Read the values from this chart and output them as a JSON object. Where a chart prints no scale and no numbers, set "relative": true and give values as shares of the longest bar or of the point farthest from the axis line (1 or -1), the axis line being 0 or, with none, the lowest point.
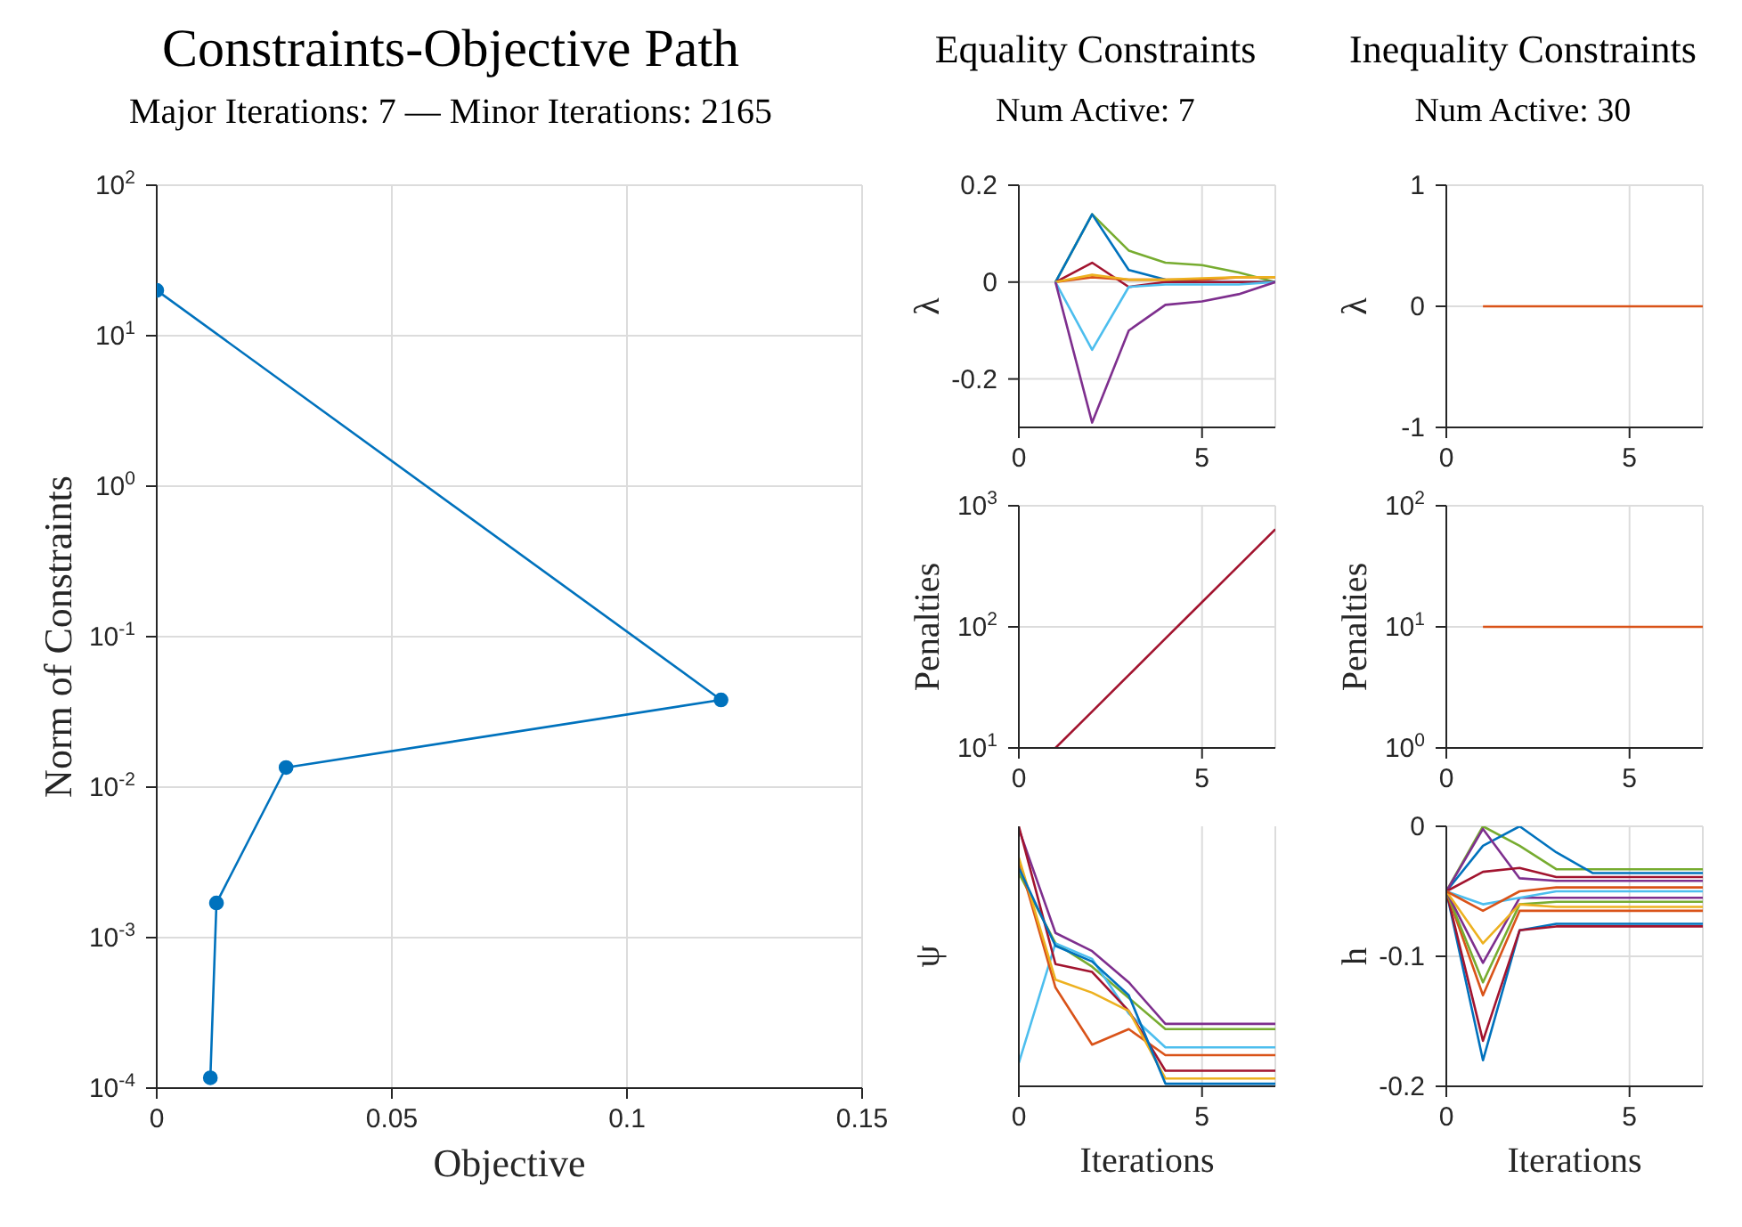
{
  "chart_data": [
    {
      "type": "line",
      "title": "Constraints-Objective Path",
      "subtitle": "Major Iterations: 7 — Minor Iterations: 2165",
      "xlabel": "Objective",
      "ylabel": "Norm of Constraints",
      "log": "y",
      "grid": true,
      "marker": "circle",
      "x": [
        0,
        0.12,
        0.0275,
        0.0127,
        0.0114
      ],
      "series": [
        {
          "color": "#0072bd",
          "values": [
            20,
            0.038,
            0.0135,
            0.0017,
            0.000117
          ]
        }
      ],
      "xlim": [
        0,
        0.15
      ],
      "xticks": [
        0,
        0.05,
        0.1,
        0.15
      ],
      "ylim": [
        0.0001,
        100
      ],
      "yticks": [
        {
          "value": 0.0001,
          "label": "10$^{-4}$"
        },
        {
          "value": 0.001,
          "label": "10$^{-3}$"
        },
        {
          "value": 0.01,
          "label": "10$^{-2}$"
        },
        {
          "value": 0.1,
          "label": "10$^{-1}$"
        },
        {
          "value": 1,
          "label": "10$^{0}$"
        },
        {
          "value": 10,
          "label": "10$^{1}$"
        },
        {
          "value": 100,
          "label": "10$^{2}$"
        }
      ]
    },
    {
      "type": "line",
      "title": "Equality Constraints",
      "subtitle": "Num Active: 7",
      "ylabel": "λ",
      "grid": true,
      "x": [
        1,
        2,
        3,
        4,
        5,
        6,
        7
      ],
      "series": [
        {
          "color": "#77ac30",
          "values": [
            0,
            0.14,
            0.065,
            0.04,
            0.035,
            0.02,
            0
          ]
        },
        {
          "color": "#0072bd",
          "values": [
            0,
            0.14,
            0.025,
            0.005,
            0,
            0,
            0
          ]
        },
        {
          "color": "#a2142f",
          "values": [
            0,
            0.04,
            -0.01,
            0,
            0,
            0,
            0
          ]
        },
        {
          "color": "#d95319",
          "values": [
            0,
            0.01,
            0.005,
            0.005,
            0.005,
            0.01,
            0.01
          ]
        },
        {
          "color": "#edb120",
          "values": [
            0,
            0.015,
            0.005,
            0.005,
            0.008,
            0.01,
            0.01
          ]
        },
        {
          "color": "#4dbeee",
          "values": [
            0,
            -0.14,
            -0.01,
            -0.005,
            -0.005,
            -0.005,
            0
          ]
        },
        {
          "color": "#7e2f8e",
          "values": [
            0,
            -0.29,
            -0.1,
            -0.047,
            -0.04,
            -0.025,
            0
          ]
        }
      ],
      "xlim": [
        0,
        7
      ],
      "xticks": [
        0,
        5
      ],
      "ylim": [
        -0.3,
        0.2
      ],
      "yticks": [
        -0.2,
        0,
        0.2
      ]
    },
    {
      "type": "line",
      "ylabel": "Penalties",
      "log": "y",
      "grid": true,
      "x": [
        1,
        2,
        3,
        4,
        5,
        6,
        7
      ],
      "series": [
        {
          "color": "#a2142f",
          "values": [
            10,
            20,
            40,
            80,
            160,
            320,
            640
          ]
        }
      ],
      "xlim": [
        0,
        7
      ],
      "xticks": [
        0,
        5
      ],
      "ylim": [
        10,
        1000
      ],
      "yticks": [
        {
          "value": 10,
          "label": "10$^{1}$"
        },
        {
          "value": 100,
          "label": "10$^{2}$"
        },
        {
          "value": 1000,
          "label": "10$^{3}$"
        }
      ]
    },
    {
      "type": "line",
      "xlabel": "Iterations",
      "ylabel": "ψ",
      "relative": true,
      "grid": "x",
      "x": [
        0,
        1,
        2,
        3,
        4,
        5,
        6,
        7
      ],
      "series": [
        {
          "color": "#7e2f8e",
          "values": [
            0.99,
            0.59,
            0.52,
            0.4,
            0.24,
            0.24,
            0.24,
            0.24
          ]
        },
        {
          "color": "#77ac30",
          "values": [
            0.82,
            0.55,
            0.46,
            0.34,
            0.22,
            0.22,
            0.22,
            0.22
          ]
        },
        {
          "color": "#4dbeee",
          "values": [
            0.09,
            0.55,
            0.49,
            0.28,
            0.15,
            0.15,
            0.15,
            0.15
          ]
        },
        {
          "color": "#d95319",
          "values": [
            0.87,
            0.38,
            0.16,
            0.22,
            0.12,
            0.12,
            0.12,
            0.12
          ]
        },
        {
          "color": "#a2142f",
          "values": [
            1,
            0.47,
            0.44,
            0.29,
            0.06,
            0.06,
            0.06,
            0.06
          ]
        },
        {
          "color": "#edb120",
          "values": [
            0.88,
            0.41,
            0.36,
            0.29,
            0.03,
            0.03,
            0.03,
            0.03
          ]
        },
        {
          "color": "#0072bd",
          "values": [
            0.84,
            0.54,
            0.48,
            0.35,
            0.01,
            0.01,
            0.01,
            0.01
          ]
        }
      ],
      "xlim": [
        0,
        7
      ],
      "xticks": [
        0,
        5
      ]
    },
    {
      "type": "line",
      "title": "Inequality Constraints",
      "subtitle": "Num Active: 30",
      "ylabel": "λ",
      "grid": true,
      "x": [
        1,
        2,
        3,
        4,
        5,
        6,
        7
      ],
      "series": [
        {
          "color": "#d95319",
          "values": [
            0,
            0,
            0,
            0,
            0,
            0,
            0
          ]
        }
      ],
      "xlim": [
        0,
        7
      ],
      "xticks": [
        0,
        5
      ],
      "ylim": [
        -1,
        1
      ],
      "yticks": [
        -1,
        0,
        1
      ]
    },
    {
      "type": "line",
      "ylabel": "Penalties",
      "log": "y",
      "grid": true,
      "x": [
        1,
        2,
        3,
        4,
        5,
        6,
        7
      ],
      "series": [
        {
          "color": "#d95319",
          "values": [
            10,
            10,
            10,
            10,
            10,
            10,
            10
          ]
        }
      ],
      "xlim": [
        0,
        7
      ],
      "xticks": [
        0,
        5
      ],
      "ylim": [
        1,
        100
      ],
      "yticks": [
        {
          "value": 1,
          "label": "10$^{0}$"
        },
        {
          "value": 10,
          "label": "10$^{1}$"
        },
        {
          "value": 100,
          "label": "10$^{2}$"
        }
      ]
    },
    {
      "type": "line",
      "xlabel": "Iterations",
      "ylabel": "h",
      "grid": true,
      "x": [
        0,
        1,
        2,
        3,
        4,
        5,
        6,
        7
      ],
      "series": [
        {
          "color": "#0072bd",
          "values": [
            -0.05,
            -0.18,
            -0.08,
            -0.075,
            -0.075,
            -0.075,
            -0.075,
            -0.075
          ]
        },
        {
          "color": "#a2142f",
          "values": [
            -0.05,
            -0.165,
            -0.08,
            -0.077,
            -0.077,
            -0.077,
            -0.077,
            -0.077
          ]
        },
        {
          "color": "#d95319",
          "values": [
            -0.05,
            -0.13,
            -0.065,
            -0.065,
            -0.065,
            -0.065,
            -0.065,
            -0.065
          ]
        },
        {
          "color": "#77ac30",
          "values": [
            -0.05,
            -0.12,
            -0.06,
            -0.058,
            -0.058,
            -0.058,
            -0.058,
            -0.058
          ]
        },
        {
          "color": "#7e2f8e",
          "values": [
            -0.05,
            -0.105,
            -0.055,
            -0.055,
            -0.055,
            -0.055,
            -0.055,
            -0.055
          ]
        },
        {
          "color": "#edb120",
          "values": [
            -0.05,
            -0.09,
            -0.06,
            -0.062,
            -0.062,
            -0.062,
            -0.062,
            -0.062
          ]
        },
        {
          "color": "#77ac30",
          "values": [
            -0.05,
            0,
            -0.015,
            -0.033,
            -0.033,
            -0.033,
            -0.033,
            -0.033
          ]
        },
        {
          "color": "#0072bd",
          "values": [
            -0.05,
            -0.015,
            0,
            -0.02,
            -0.036,
            -0.036,
            -0.036,
            -0.036
          ]
        },
        {
          "color": "#7e2f8e",
          "values": [
            -0.05,
            -0.002,
            -0.04,
            -0.042,
            -0.042,
            -0.042,
            -0.042,
            -0.042
          ]
        },
        {
          "color": "#a2142f",
          "values": [
            -0.05,
            -0.035,
            -0.032,
            -0.039,
            -0.039,
            -0.039,
            -0.039,
            -0.039
          ]
        },
        {
          "color": "#4dbeee",
          "values": [
            -0.05,
            -0.06,
            -0.055,
            -0.05,
            -0.05,
            -0.05,
            -0.05,
            -0.05
          ]
        },
        {
          "color": "#d95319",
          "values": [
            -0.05,
            -0.065,
            -0.05,
            -0.047,
            -0.047,
            -0.047,
            -0.047,
            -0.047
          ]
        }
      ],
      "xlim": [
        0,
        7
      ],
      "xticks": [
        0,
        5
      ],
      "ylim": [
        -0.2,
        0
      ],
      "yticks": [
        -0.2,
        -0.1,
        0
      ]
    }
  ]
}
